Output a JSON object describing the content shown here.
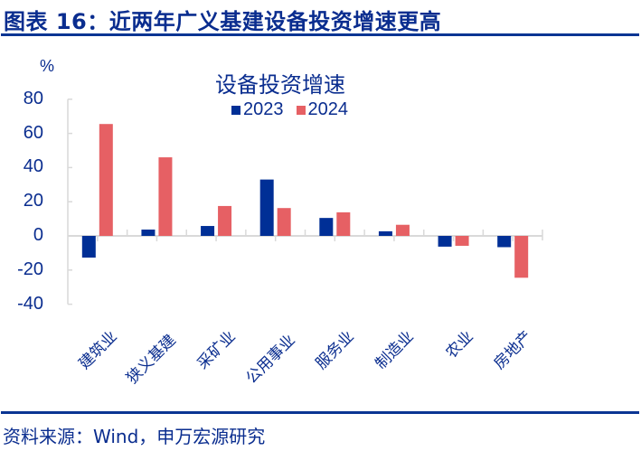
{
  "figure": {
    "title": "图表 16：近两年广义基建设备投资增速更高",
    "source": "资料来源：Wind，申万宏源研究"
  },
  "colors": {
    "series_2023": "#002f96",
    "series_2024": "#e66064",
    "text": "#0a2d8f",
    "rule": "#0a3593",
    "axis": "#d9d9d9"
  },
  "chart_data": {
    "type": "bar",
    "title": "设备投资增速",
    "xlabel": "",
    "ylabel": "%",
    "ylim": [
      -40,
      80
    ],
    "yticks": [
      80,
      60,
      40,
      20,
      0,
      -20,
      -40
    ],
    "grid": false,
    "legend_position": "top",
    "categories": [
      "建筑业",
      "狭义基建",
      "采矿业",
      "公用事业",
      "服务业",
      "制造业",
      "农业",
      "房地产"
    ],
    "series": [
      {
        "name": "2023",
        "color": "#002f96",
        "values": [
          -12.7,
          3.7,
          5.8,
          33.0,
          10.5,
          2.7,
          -6.3,
          -6.6
        ]
      },
      {
        "name": "2024",
        "color": "#e66064",
        "values": [
          65.5,
          46.0,
          17.5,
          16.3,
          13.8,
          6.5,
          -5.8,
          -24.5
        ]
      }
    ]
  }
}
